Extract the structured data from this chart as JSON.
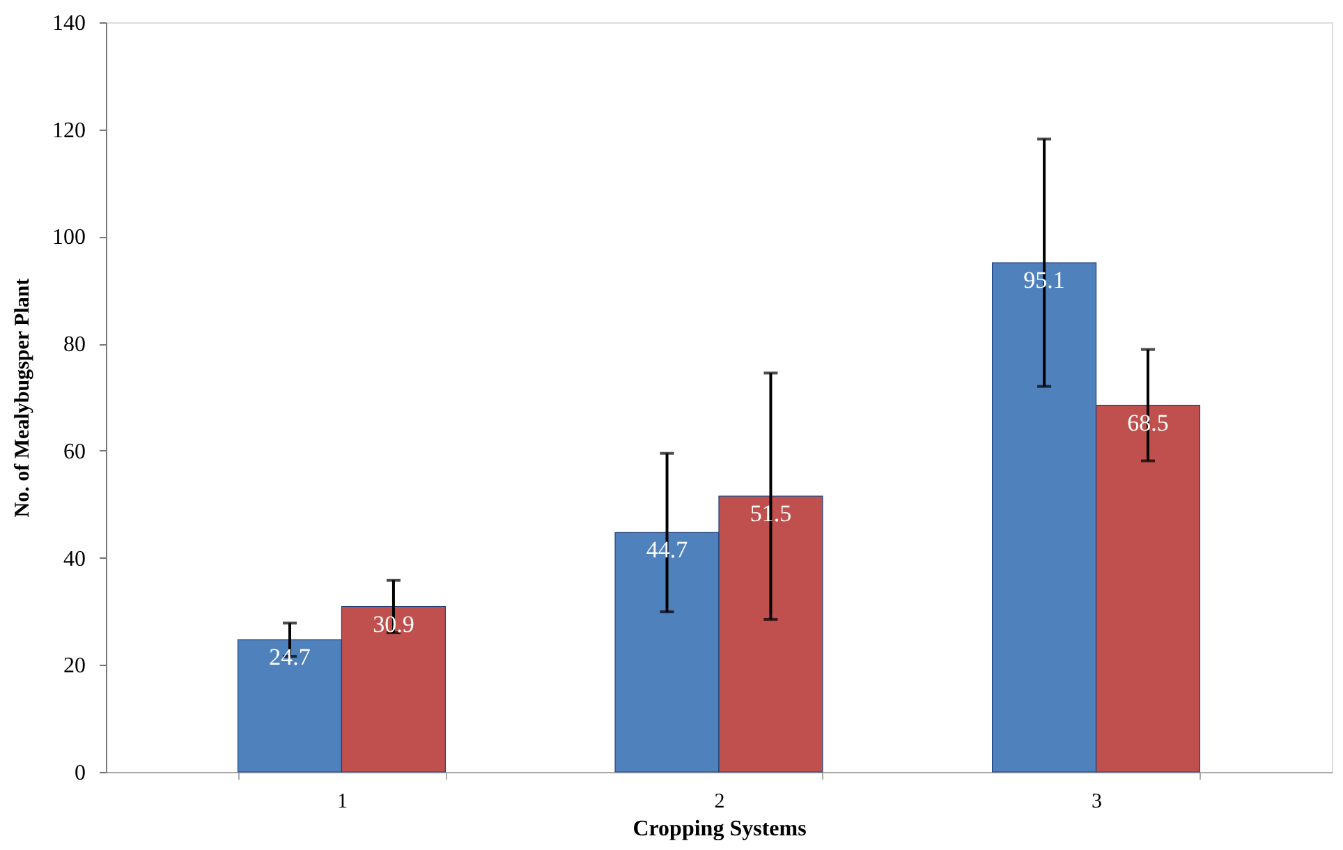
{
  "chart_data": {
    "type": "bar",
    "xlabel": "Cropping Systems",
    "ylabel": "No. of Mealybugsper Plant",
    "categories": [
      "1",
      "2",
      "3"
    ],
    "series": [
      {
        "color": "#4f81bd",
        "values": [
          24.7,
          44.7,
          95.1
        ],
        "errors": [
          3.1,
          14.8,
          23.1
        ]
      },
      {
        "color": "#c0504d",
        "values": [
          30.9,
          51.5,
          68.5
        ],
        "errors": [
          4.9,
          23,
          10.4
        ]
      }
    ],
    "ylim": [
      0,
      140
    ],
    "yticks": [
      0,
      20,
      40,
      60,
      80,
      100,
      120,
      140
    ],
    "grid": false,
    "legend": false,
    "data_labels": true
  }
}
